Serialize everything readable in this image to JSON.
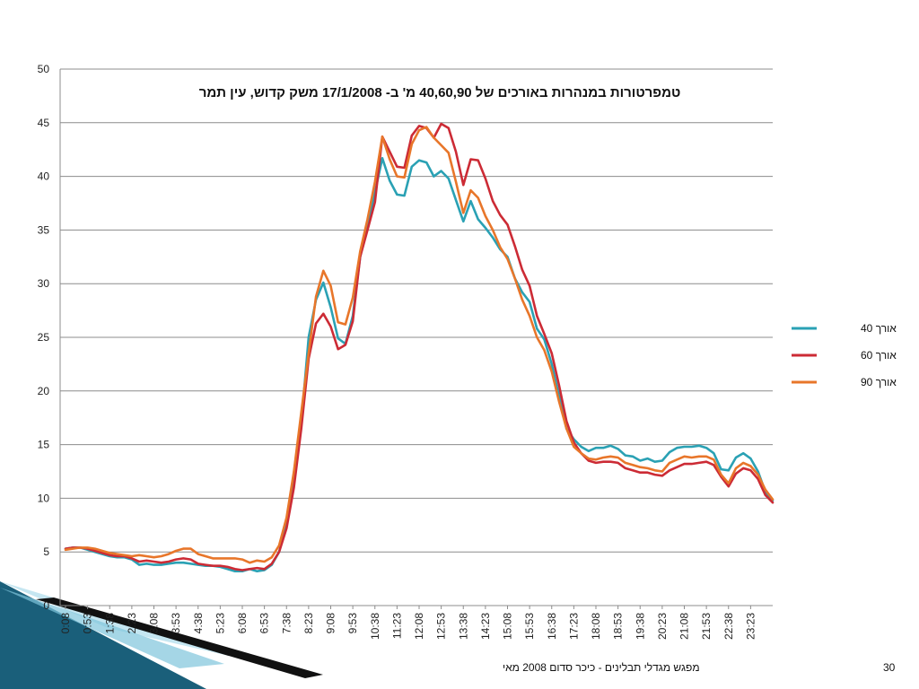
{
  "footer": {
    "text": "מפגש מגדלי תבלינים - כיכר סדום    2008 מאי",
    "page_number": "30"
  },
  "colors": {
    "series_40": "#2aa1b4",
    "series_60": "#cc2b35",
    "series_90": "#e8762a",
    "grid": "#8c8c8c",
    "decoration_dark": "#1a5f7a",
    "decoration_light": "#bfe3f0"
  },
  "chart_data": {
    "type": "line",
    "title": "טמפרטורות במנהרות באורכים של 40,60,90 מ'  ב- 17/1/2008 משק קדוש, עין תמר",
    "xlabel": "",
    "ylabel": "",
    "ylim": [
      0,
      50
    ],
    "yticks": [
      0,
      5,
      10,
      15,
      20,
      25,
      30,
      35,
      40,
      45,
      50
    ],
    "grid": true,
    "legend_position": "right",
    "x_tick_labels": [
      "0:08",
      "0:53",
      "1:38",
      "2:23",
      "3:08",
      "3:53",
      "4:38",
      "5:23",
      "6:08",
      "6:53",
      "7:38",
      "8:23",
      "9:08",
      "9:53",
      "10:38",
      "11:23",
      "12:08",
      "12:53",
      "13:38",
      "14:23",
      "15:08",
      "15:53",
      "16:38",
      "17:23",
      "18:08",
      "18:53",
      "19:38",
      "20:23",
      "21:08",
      "21:53",
      "22:38",
      "23:23"
    ],
    "x_tick_step": 3,
    "series": [
      {
        "name": "אורך 40",
        "color": "#2aa1b4",
        "values": [
          5.3,
          5.4,
          5.4,
          5.2,
          5.0,
          4.8,
          4.6,
          4.5,
          4.5,
          4.3,
          3.8,
          3.9,
          3.8,
          3.8,
          3.9,
          4.0,
          4.0,
          3.9,
          3.8,
          3.7,
          3.7,
          3.6,
          3.4,
          3.2,
          3.2,
          3.4,
          3.2,
          3.3,
          3.8,
          5.0,
          7.5,
          11.5,
          17.0,
          25.0,
          28.5,
          30.1,
          27.8,
          24.9,
          24.4,
          27.0,
          32.5,
          35.5,
          38.5,
          41.7,
          39.6,
          38.3,
          38.2,
          40.9,
          41.5,
          41.3,
          40.0,
          40.5,
          39.8,
          37.8,
          35.8,
          37.7,
          36.0,
          35.2,
          34.3,
          33.2,
          32.5,
          30.5,
          29.2,
          28.3,
          25.8,
          24.8,
          22.5,
          19.5,
          16.5,
          15.5,
          14.8,
          14.4,
          14.7,
          14.7,
          14.9,
          14.6,
          14.0,
          13.9,
          13.5,
          13.7,
          13.4,
          13.5,
          14.3,
          14.7,
          14.8,
          14.8,
          14.9,
          14.7,
          14.2,
          12.7,
          12.6,
          13.8,
          14.2,
          13.7,
          12.5,
          10.6,
          9.8
        ]
      },
      {
        "name": "אורך 60",
        "color": "#cc2b35",
        "values": [
          5.3,
          5.4,
          5.4,
          5.3,
          5.1,
          4.9,
          4.7,
          4.6,
          4.6,
          4.4,
          4.1,
          4.2,
          4.1,
          4.0,
          4.1,
          4.3,
          4.4,
          4.3,
          3.9,
          3.8,
          3.7,
          3.7,
          3.6,
          3.4,
          3.3,
          3.4,
          3.5,
          3.4,
          3.9,
          5.0,
          7.2,
          11.0,
          16.5,
          23.0,
          26.3,
          27.2,
          26.0,
          23.9,
          24.3,
          26.5,
          32.5,
          35.0,
          37.6,
          43.7,
          42.3,
          40.9,
          40.8,
          43.8,
          44.7,
          44.5,
          43.6,
          44.9,
          44.5,
          42.3,
          39.2,
          41.6,
          41.5,
          39.8,
          37.7,
          36.4,
          35.5,
          33.5,
          31.3,
          29.8,
          27.0,
          25.3,
          23.5,
          20.5,
          17.2,
          15.2,
          14.2,
          13.5,
          13.3,
          13.4,
          13.4,
          13.3,
          12.8,
          12.6,
          12.4,
          12.4,
          12.2,
          12.1,
          12.6,
          12.9,
          13.2,
          13.2,
          13.3,
          13.4,
          13.1,
          12.0,
          11.1,
          12.3,
          12.8,
          12.6,
          11.8,
          10.3,
          9.6
        ]
      },
      {
        "name": "אורך 90",
        "color": "#e8762a",
        "values": [
          5.2,
          5.3,
          5.4,
          5.4,
          5.3,
          5.1,
          4.9,
          4.8,
          4.7,
          4.6,
          4.7,
          4.6,
          4.5,
          4.6,
          4.8,
          5.1,
          5.3,
          5.3,
          4.8,
          4.6,
          4.4,
          4.4,
          4.4,
          4.4,
          4.3,
          4.0,
          4.2,
          4.1,
          4.5,
          5.6,
          8.2,
          12.5,
          18.0,
          23.5,
          28.8,
          31.2,
          29.8,
          26.4,
          26.2,
          28.7,
          33.0,
          36.0,
          39.5,
          43.7,
          41.6,
          40.0,
          39.9,
          43.0,
          44.3,
          44.6,
          43.6,
          42.9,
          42.2,
          39.5,
          36.6,
          38.7,
          38.0,
          36.3,
          35.0,
          33.4,
          32.3,
          30.5,
          28.5,
          27.0,
          25.0,
          23.8,
          21.8,
          19.0,
          16.5,
          14.8,
          14.2,
          13.7,
          13.6,
          13.8,
          13.9,
          13.8,
          13.3,
          13.1,
          12.9,
          12.8,
          12.6,
          12.5,
          13.3,
          13.6,
          13.9,
          13.8,
          13.9,
          13.9,
          13.6,
          12.2,
          11.4,
          12.8,
          13.3,
          13.0,
          12.2,
          10.8,
          9.9
        ]
      }
    ]
  }
}
